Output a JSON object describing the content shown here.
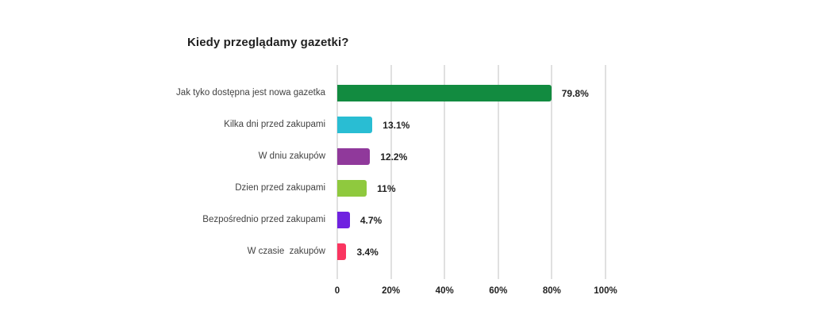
{
  "chart_data": {
    "type": "bar",
    "orientation": "horizontal",
    "title": "Kiedy przeglądamy gazetki?",
    "categories": [
      "Jak tyko dostępna jest nowa gazetka",
      "Kilka dni przed zakupami",
      "W dniu zakupów",
      "Dzien przed zakupami",
      "Bezpośrednio przed zakupami",
      "W czasie  zakupów"
    ],
    "values": [
      79.8,
      13.1,
      12.2,
      11,
      4.7,
      3.4
    ],
    "value_labels": [
      "79.8%",
      "13.1%",
      "12.2%",
      "11%",
      "4.7%",
      "3.4%"
    ],
    "bar_colors": [
      "#128b40",
      "#29bdd3",
      "#90399b",
      "#8fc93e",
      "#6f22e0",
      "#fa3560"
    ],
    "x_ticks": [
      "0",
      "20%",
      "40%",
      "60%",
      "80%",
      "100%"
    ],
    "xlim": [
      0,
      100
    ],
    "xlabel": "",
    "ylabel": "",
    "grid": "vertical-only",
    "gridline_color": "#e0e0e0",
    "legend": "none",
    "title_color": "#212121",
    "category_label_color": "#424242",
    "value_label_color": "#212121",
    "background_color": "#ffffff"
  }
}
